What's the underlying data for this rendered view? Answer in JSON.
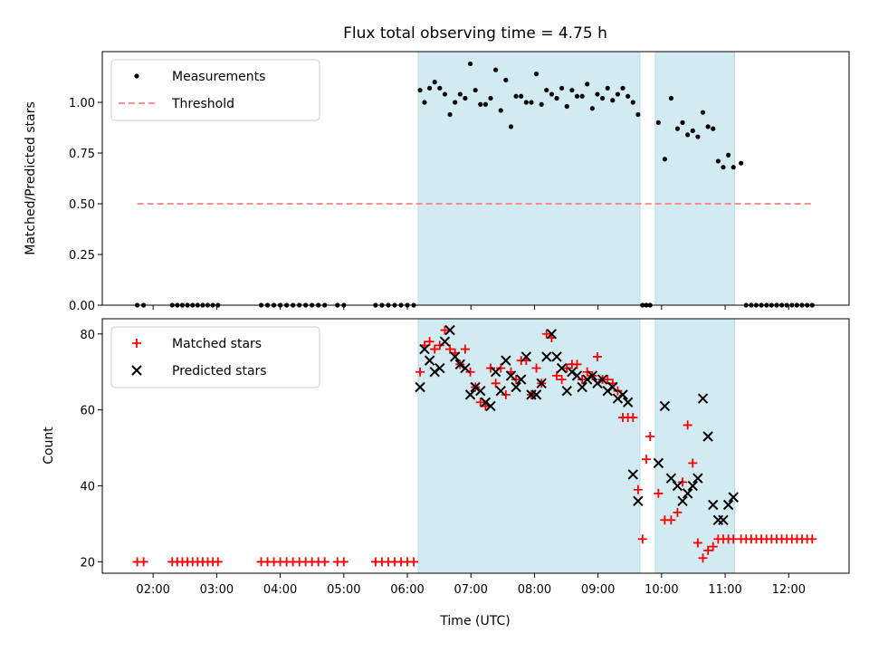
{
  "chart_data": {
    "title": "Flux total observing time = 4.75 h",
    "xlabel": "Time (UTC)",
    "x_unit": "hours UTC",
    "xlim": [
      1.2,
      12.95
    ],
    "xticks": [
      2,
      3,
      4,
      5,
      6,
      7,
      8,
      9,
      10,
      11,
      12
    ],
    "xtick_labels": [
      "02:00",
      "03:00",
      "04:00",
      "05:00",
      "06:00",
      "07:00",
      "08:00",
      "09:00",
      "10:00",
      "11:00",
      "12:00"
    ],
    "shaded_intervals": [
      [
        6.17,
        9.66
      ],
      [
        9.9,
        11.15
      ]
    ],
    "shade_color": "#add8e6",
    "panels": [
      {
        "type": "scatter",
        "ylabel": "Matched/Predicted stars",
        "ylim": [
          0,
          1.25
        ],
        "yticks": [
          0.0,
          0.25,
          0.5,
          0.75,
          1.0
        ],
        "ytick_labels": [
          "0.00",
          "0.25",
          "0.50",
          "0.75",
          "1.00"
        ],
        "legend_position": "upper left",
        "series": [
          {
            "name": "Measurements",
            "marker": "dot",
            "color": "#000000",
            "x": [
              1.75,
              1.85,
              2.3,
              2.38,
              2.46,
              2.54,
              2.62,
              2.7,
              2.78,
              2.86,
              2.94,
              3.02,
              3.7,
              3.8,
              3.9,
              4.0,
              4.1,
              4.2,
              4.3,
              4.4,
              4.5,
              4.6,
              4.7,
              4.9,
              5.0,
              5.5,
              5.6,
              5.7,
              5.8,
              5.9,
              6.0,
              6.1,
              6.2,
              6.27,
              6.35,
              6.43,
              6.51,
              6.59,
              6.67,
              6.75,
              6.83,
              6.91,
              6.99,
              7.07,
              7.15,
              7.23,
              7.31,
              7.39,
              7.47,
              7.55,
              7.63,
              7.71,
              7.79,
              7.87,
              7.95,
              8.03,
              8.11,
              8.19,
              8.27,
              8.35,
              8.43,
              8.51,
              8.59,
              8.67,
              8.75,
              8.83,
              8.91,
              8.99,
              9.07,
              9.15,
              9.23,
              9.31,
              9.39,
              9.47,
              9.55,
              9.63,
              9.7,
              9.76,
              9.82,
              9.95,
              10.05,
              10.15,
              10.25,
              10.33,
              10.41,
              10.49,
              10.57,
              10.65,
              10.73,
              10.81,
              10.89,
              10.97,
              11.05,
              11.13,
              11.25,
              11.33,
              11.41,
              11.49,
              11.57,
              11.65,
              11.73,
              11.81,
              11.89,
              11.97,
              12.05,
              12.13,
              12.21,
              12.29,
              12.37
            ],
            "y": [
              0,
              0,
              0,
              0,
              0,
              0,
              0,
              0,
              0,
              0,
              0,
              0,
              0,
              0,
              0,
              0,
              0,
              0,
              0,
              0,
              0,
              0,
              0,
              0,
              0,
              0,
              0,
              0,
              0,
              0,
              0,
              0,
              1.06,
              1.0,
              1.07,
              1.1,
              1.07,
              1.04,
              0.94,
              1.0,
              1.04,
              1.02,
              1.19,
              1.06,
              0.99,
              0.99,
              1.02,
              1.16,
              0.96,
              1.11,
              0.88,
              1.03,
              1.03,
              1.0,
              1.0,
              1.14,
              0.99,
              1.06,
              1.04,
              1.02,
              1.07,
              0.98,
              1.06,
              1.03,
              1.03,
              1.09,
              0.97,
              1.04,
              1.02,
              1.07,
              1.01,
              1.04,
              1.07,
              1.03,
              1.0,
              0.94,
              0,
              0,
              0,
              0.9,
              0.72,
              1.02,
              0.87,
              0.9,
              0.84,
              0.86,
              0.83,
              0.95,
              0.88,
              0.87,
              0.71,
              0.68,
              0.74,
              0.68,
              0.7,
              0,
              0,
              0,
              0,
              0,
              0,
              0,
              0,
              0,
              0,
              0,
              0,
              0,
              0
            ]
          },
          {
            "name": "Threshold",
            "style": "dashed",
            "color": "#ff7f7f",
            "x": [
              1.75,
              12.4
            ],
            "y": [
              0.5,
              0.5
            ]
          }
        ]
      },
      {
        "type": "scatter",
        "ylabel": "Count",
        "ylim": [
          17,
          84
        ],
        "yticks": [
          20,
          40,
          60,
          80
        ],
        "ytick_labels": [
          "20",
          "40",
          "60",
          "80"
        ],
        "legend_position": "upper left",
        "series": [
          {
            "name": "Matched stars",
            "marker": "plus",
            "color": "#ff0000",
            "x": [
              1.75,
              1.85,
              2.3,
              2.38,
              2.46,
              2.54,
              2.62,
              2.7,
              2.78,
              2.86,
              2.94,
              3.02,
              3.7,
              3.8,
              3.9,
              4.0,
              4.1,
              4.2,
              4.3,
              4.4,
              4.5,
              4.6,
              4.7,
              4.9,
              5.0,
              5.5,
              5.6,
              5.7,
              5.8,
              5.9,
              6.0,
              6.1,
              6.2,
              6.27,
              6.35,
              6.43,
              6.51,
              6.59,
              6.67,
              6.75,
              6.83,
              6.91,
              6.99,
              7.07,
              7.15,
              7.23,
              7.31,
              7.39,
              7.47,
              7.55,
              7.63,
              7.71,
              7.79,
              7.87,
              7.95,
              8.03,
              8.11,
              8.19,
              8.27,
              8.35,
              8.43,
              8.51,
              8.59,
              8.67,
              8.75,
              8.83,
              8.91,
              8.99,
              9.07,
              9.15,
              9.23,
              9.31,
              9.39,
              9.47,
              9.55,
              9.63,
              9.7,
              9.76,
              9.82,
              9.95,
              10.05,
              10.15,
              10.25,
              10.33,
              10.41,
              10.49,
              10.57,
              10.65,
              10.73,
              10.81,
              10.89,
              10.97,
              11.05,
              11.13,
              11.25,
              11.33,
              11.41,
              11.49,
              11.57,
              11.65,
              11.73,
              11.81,
              11.89,
              11.97,
              12.05,
              12.13,
              12.21,
              12.29,
              12.37
            ],
            "y": [
              20,
              20,
              20,
              20,
              20,
              20,
              20,
              20,
              20,
              20,
              20,
              20,
              20,
              20,
              20,
              20,
              20,
              20,
              20,
              20,
              20,
              20,
              20,
              20,
              20,
              20,
              20,
              20,
              20,
              20,
              20,
              20,
              70,
              77,
              78,
              76,
              77,
              81,
              76,
              75,
              72,
              76,
              70,
              66,
              62,
              61,
              71,
              67,
              71,
              64,
              70,
              68,
              73,
              73,
              64,
              71,
              67,
              80,
              79,
              69,
              68,
              71,
              72,
              72,
              68,
              70,
              69,
              74,
              68,
              68,
              67,
              65,
              58,
              58,
              58,
              39,
              26,
              47,
              53,
              38,
              31,
              31,
              33,
              41,
              56,
              46,
              25,
              21,
              23,
              24,
              26,
              26,
              26,
              26,
              26,
              26,
              26,
              26,
              26,
              26,
              26,
              26,
              26,
              26,
              26,
              26,
              26,
              26,
              26
            ]
          },
          {
            "name": "Predicted stars",
            "marker": "x",
            "color": "#000000",
            "x": [
              6.2,
              6.27,
              6.35,
              6.43,
              6.51,
              6.59,
              6.67,
              6.75,
              6.83,
              6.91,
              6.99,
              7.07,
              7.15,
              7.23,
              7.31,
              7.39,
              7.47,
              7.55,
              7.63,
              7.71,
              7.79,
              7.87,
              7.95,
              8.03,
              8.11,
              8.19,
              8.27,
              8.35,
              8.43,
              8.51,
              8.59,
              8.67,
              8.75,
              8.83,
              8.91,
              8.99,
              9.07,
              9.15,
              9.23,
              9.31,
              9.39,
              9.47,
              9.55,
              9.63,
              9.95,
              10.05,
              10.15,
              10.25,
              10.33,
              10.41,
              10.49,
              10.57,
              10.65,
              10.73,
              10.81,
              10.89,
              10.97,
              11.05,
              11.13
            ],
            "y": [
              66,
              76,
              73,
              70,
              71,
              78,
              81,
              74,
              72,
              71,
              64,
              66,
              65,
              62,
              61,
              70,
              65,
              73,
              69,
              66,
              68,
              74,
              64,
              64,
              67,
              74,
              80,
              74,
              71,
              65,
              70,
              69,
              66,
              68,
              69,
              67,
              68,
              65,
              66,
              63,
              64,
              62,
              43,
              36,
              46,
              61,
              42,
              40,
              36,
              38,
              40,
              42,
              63,
              53,
              35,
              31,
              31,
              35,
              37
            ]
          }
        ]
      }
    ]
  }
}
